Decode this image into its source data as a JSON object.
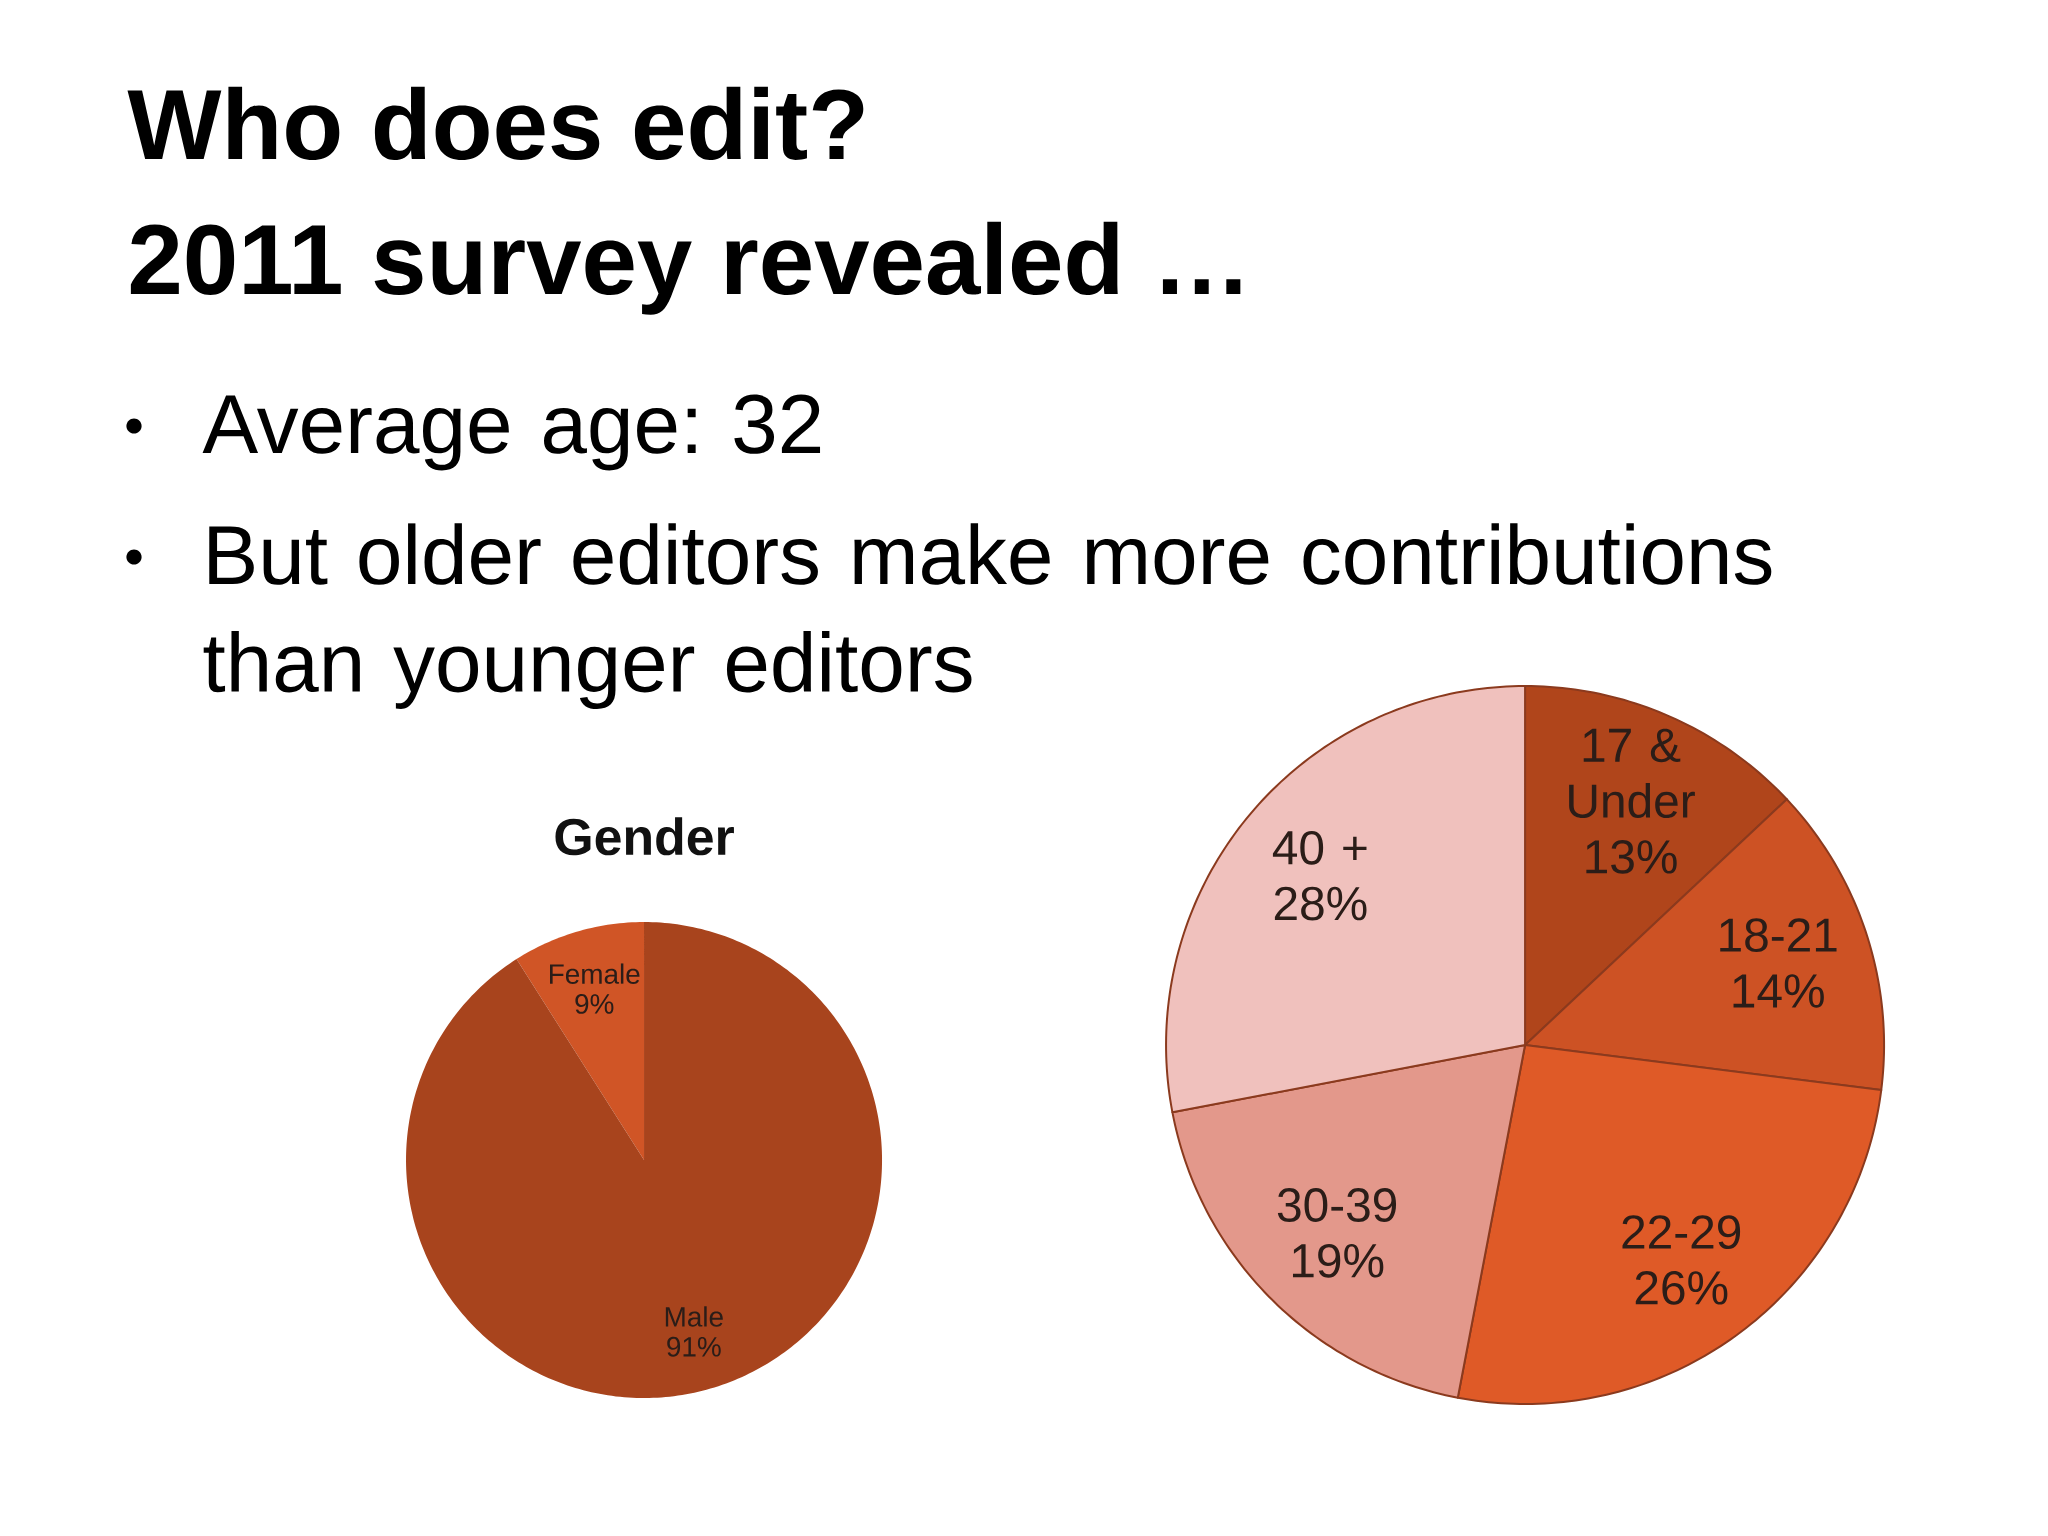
{
  "chart_data": [
    {
      "type": "other",
      "title": "Who does edit?",
      "subtitle": "2011 survey revealed …",
      "annotations": [
        "Average age: 32",
        "But older editors make more contributions than younger editors"
      ]
    },
    {
      "type": "pie",
      "title": "Gender",
      "categories": [
        "Female",
        "Male"
      ],
      "values": [
        9,
        91
      ],
      "colors": [
        "#d05526",
        "#a8441d"
      ],
      "value_labels": [
        "9%",
        "91%"
      ]
    },
    {
      "type": "pie",
      "categories": [
        "17 & Under",
        "18-21",
        "22-29",
        "30-39",
        "40 +"
      ],
      "values": [
        13,
        14,
        26,
        19,
        28
      ],
      "colors": [
        "#b0451b",
        "#cd5224",
        "#df5a27",
        "#e3988b",
        "#f0c1bd"
      ],
      "value_labels": [
        "13%",
        "14%",
        "26%",
        "19%",
        "28%"
      ]
    }
  ]
}
